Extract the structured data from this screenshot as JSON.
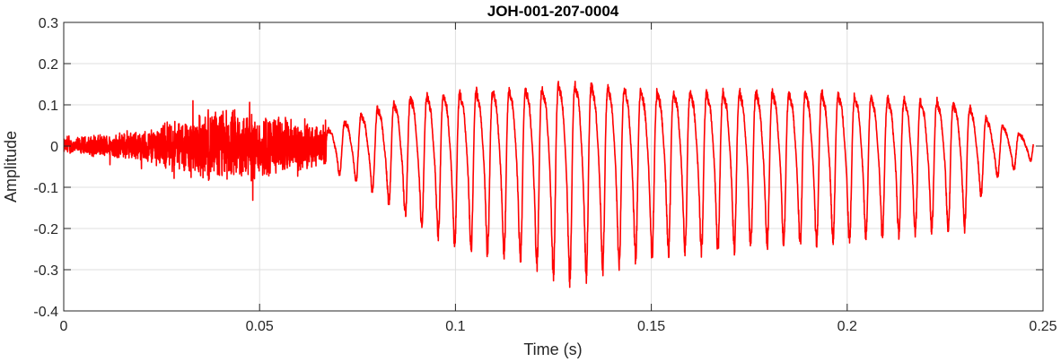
{
  "chart_data": {
    "type": "line",
    "title": "JOH-001-207-0004",
    "xlabel": "Time (s)",
    "ylabel": "Amplitude",
    "xlim": [
      0,
      0.25
    ],
    "ylim": [
      -0.4,
      0.3
    ],
    "xticks": [
      0,
      0.05,
      0.1,
      0.15,
      0.2,
      0.25
    ],
    "xtick_labels": [
      "0",
      "0.05",
      "0.1",
      "0.15",
      "0.2",
      "0.25"
    ],
    "yticks": [
      -0.4,
      -0.3,
      -0.2,
      -0.1,
      0,
      0.1,
      0.2,
      0.3
    ],
    "ytick_labels": [
      "-0.4",
      "-0.3",
      "-0.2",
      "-0.1",
      "0",
      "0.1",
      "0.2",
      "0.3"
    ],
    "grid": true,
    "line_color": "#ff0000",
    "series": [
      {
        "signal_end_time": 0.2475,
        "noise_segment": {
          "time_range": [
            0,
            0.067
          ],
          "envelope_points": [
            [
              0,
              0.02
            ],
            [
              0.02,
              0.04
            ],
            [
              0.028,
              0.07
            ],
            [
              0.04,
              0.1
            ],
            [
              0.05,
              0.09
            ],
            [
              0.06,
              0.07
            ],
            [
              0.067,
              0.05
            ]
          ]
        },
        "oscillation_segment": {
          "time_range": [
            0.067,
            0.2475
          ],
          "period": 0.0042,
          "peak_envelope": [
            [
              0.067,
              0.05
            ],
            [
              0.075,
              0.1
            ],
            [
              0.09,
              0.17
            ],
            [
              0.12,
              0.19
            ],
            [
              0.128,
              0.21
            ],
            [
              0.15,
              0.18
            ],
            [
              0.19,
              0.18
            ],
            [
              0.21,
              0.16
            ],
            [
              0.23,
              0.14
            ],
            [
              0.236,
              0.09
            ],
            [
              0.2475,
              0.02
            ]
          ],
          "trough_envelope": [
            [
              0.067,
              -0.05
            ],
            [
              0.075,
              -0.08
            ],
            [
              0.09,
              -0.17
            ],
            [
              0.1,
              -0.22
            ],
            [
              0.12,
              -0.26
            ],
            [
              0.128,
              -0.3
            ],
            [
              0.15,
              -0.24
            ],
            [
              0.2,
              -0.21
            ],
            [
              0.23,
              -0.18
            ],
            [
              0.236,
              -0.08
            ],
            [
              0.2475,
              -0.03
            ]
          ]
        }
      }
    ]
  }
}
